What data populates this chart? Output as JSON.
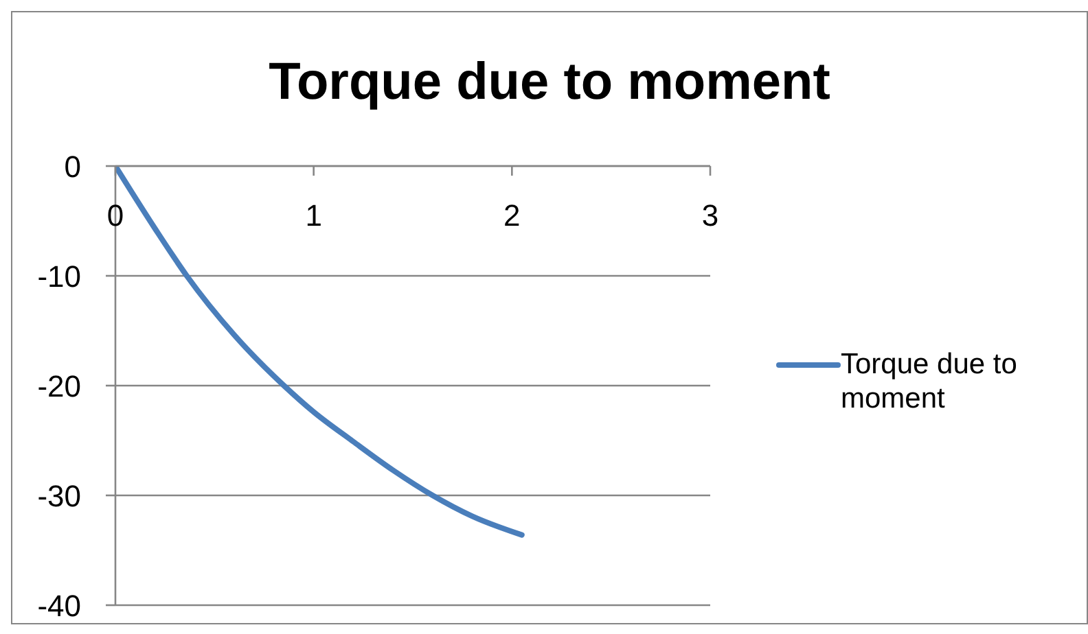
{
  "chart_data": {
    "type": "line",
    "title": "Torque due to moment",
    "x": [
      0,
      0.2,
      0.36,
      0.6,
      0.85,
      1,
      1.2,
      1.4,
      1.6,
      1.8,
      2.05
    ],
    "series": [
      {
        "name": "Torque due to moment",
        "color": "#4a7ebb",
        "values": [
          0,
          -5.7,
          -10,
          -15.4,
          -20,
          -22.4,
          -25.1,
          -27.7,
          -30,
          -31.9,
          -33.6
        ]
      }
    ],
    "xlim": [
      0,
      3
    ],
    "xticks": [
      0,
      1,
      2,
      3
    ],
    "ylim": [
      -40,
      0
    ],
    "yticks": [
      -40,
      -30,
      -20,
      -10,
      0
    ],
    "grid": "y",
    "legend": "right",
    "marker": "none",
    "line_style": "solid"
  }
}
